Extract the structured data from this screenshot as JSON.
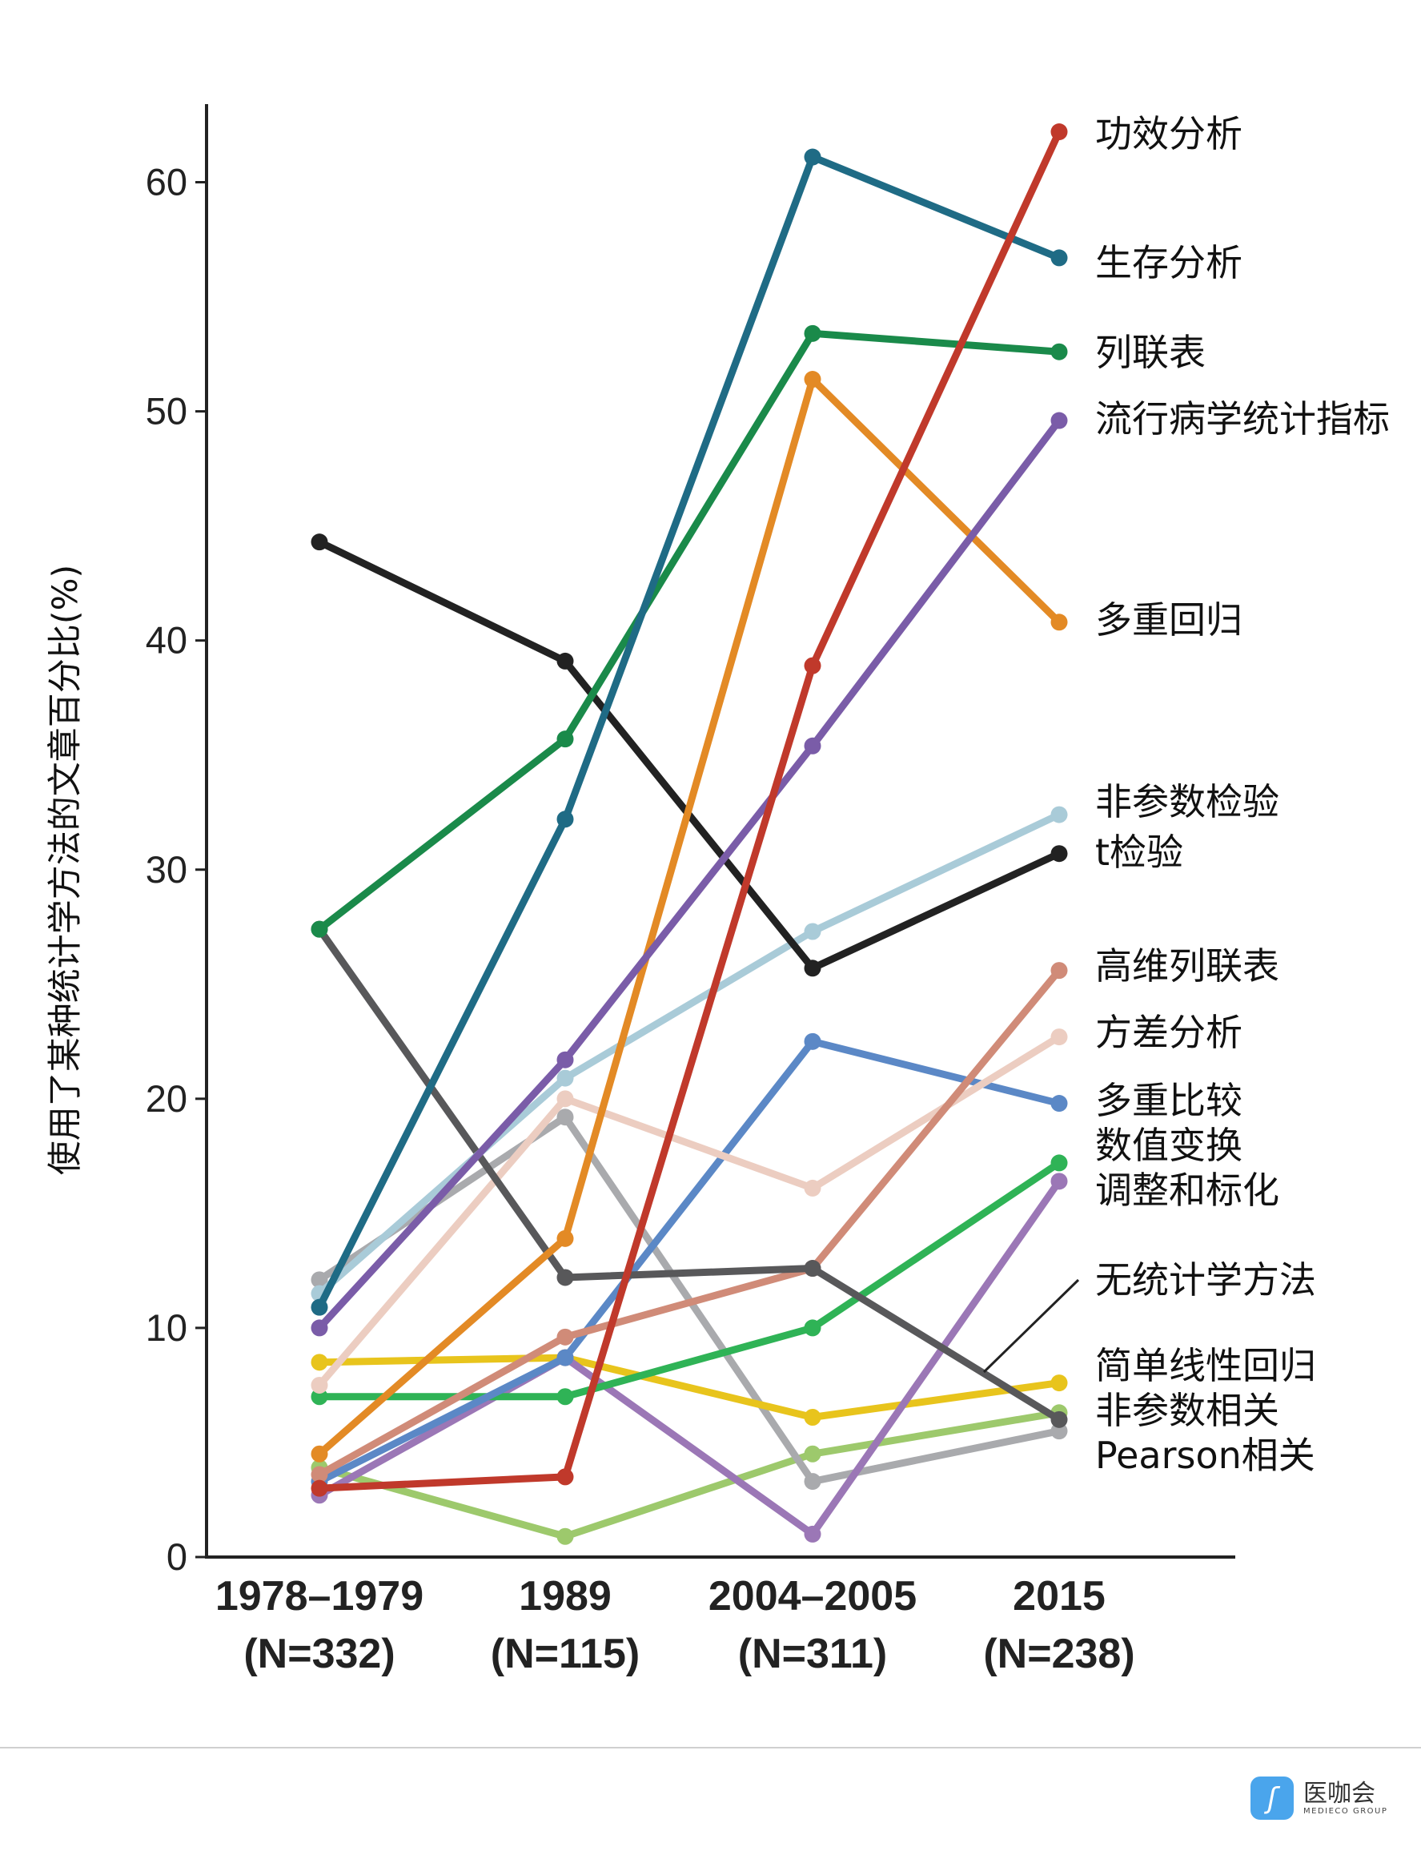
{
  "chart_data": {
    "type": "line",
    "title": "",
    "ylabel": "使用了某种统计学方法的文章百分比(%)",
    "xlabel": "",
    "ylim": [
      0,
      63
    ],
    "yticks": [
      0,
      10,
      20,
      30,
      40,
      50,
      60
    ],
    "grid": false,
    "legend": "right (direct labels at line ends)",
    "categories": [
      {
        "year": "1978–1979",
        "n": "(N=332)"
      },
      {
        "year": "1989",
        "n": "(N=115)"
      },
      {
        "year": "2004–2005",
        "n": "(N=311)"
      },
      {
        "year": "2015",
        "n": "(N=238)"
      }
    ],
    "series": [
      {
        "name": "功效分析",
        "color": "#c0392b",
        "values": [
          3.0,
          3.5,
          38.9,
          62.2
        ]
      },
      {
        "name": "生存分析",
        "color": "#1f6b85",
        "values": [
          10.9,
          32.2,
          61.1,
          56.7
        ]
      },
      {
        "name": "列联表",
        "color": "#1a8a4a",
        "values": [
          27.4,
          35.7,
          53.4,
          52.6
        ]
      },
      {
        "name": "流行病学统计指标",
        "color": "#7a5ca8",
        "values": [
          10.0,
          21.7,
          35.4,
          49.6
        ]
      },
      {
        "name": "多重回归",
        "color": "#e38a25",
        "values": [
          4.5,
          13.9,
          51.4,
          40.8
        ]
      },
      {
        "name": "非参数检验",
        "color": "#a9cbd8",
        "values": [
          11.5,
          20.9,
          27.3,
          32.4
        ]
      },
      {
        "name": "t检验",
        "color": "#222222",
        "values": [
          44.3,
          39.1,
          25.7,
          30.7
        ]
      },
      {
        "name": "高维列联表",
        "color": "#d08b78",
        "values": [
          3.6,
          9.6,
          12.6,
          25.6
        ]
      },
      {
        "name": "方差分析",
        "color": "#eccdc1",
        "values": [
          7.5,
          20.0,
          16.1,
          22.7
        ]
      },
      {
        "name": "多重比较",
        "color": "#5b88c6",
        "values": [
          3.3,
          8.7,
          22.5,
          19.8
        ]
      },
      {
        "name": "数值变换",
        "color": "#2fb356",
        "values": [
          7.0,
          7.0,
          10.0,
          17.2
        ]
      },
      {
        "name": "调整和标化",
        "color": "#9b77b6",
        "values": [
          2.7,
          8.7,
          1.0,
          16.4
        ]
      },
      {
        "name": "无统计学方法",
        "color": "#58585a",
        "values": [
          27.4,
          12.2,
          12.6,
          6.0
        ]
      },
      {
        "name": "简单线性回归",
        "color": "#e8c41c",
        "values": [
          8.5,
          8.7,
          6.1,
          7.6
        ]
      },
      {
        "name": "非参数相关",
        "color": "#9dc96c",
        "values": [
          3.9,
          0.9,
          4.5,
          6.3
        ]
      },
      {
        "name": "Pearson相关",
        "color": "#a9aaad",
        "values": [
          12.1,
          19.2,
          3.3,
          5.5
        ]
      }
    ]
  },
  "logo": {
    "mark": "ʃ",
    "name_cn": "医咖会",
    "name_en": "MEDIECO GROUP",
    "color": "#4aa5ec"
  }
}
